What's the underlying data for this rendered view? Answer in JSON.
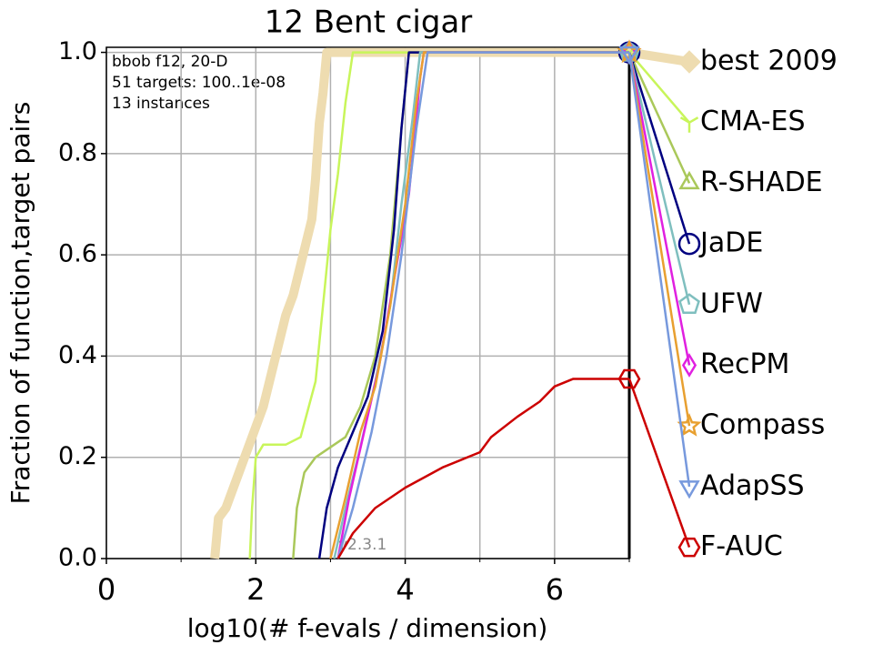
{
  "chart_data": {
    "type": "ecdf",
    "title": "12 Bent cigar",
    "xlabel": "log10(# f-evals / dimension)",
    "ylabel": "Fraction of function,target pairs",
    "annotations": [
      "bbob f12, 20-D",
      "51 targets: 100..1e-08",
      "13 instances"
    ],
    "watermark": "v2.3.1",
    "xlim": [
      0,
      7
    ],
    "ylim": [
      0,
      1.01
    ],
    "xticks": [
      0,
      2,
      4,
      6
    ],
    "xminor": [
      1,
      3,
      5,
      7
    ],
    "yticks": [
      {
        "value": 0,
        "label": "0.0"
      },
      {
        "value": 0.2,
        "label": "0.2"
      },
      {
        "value": 0.4,
        "label": "0.4"
      },
      {
        "value": 0.6,
        "label": "0.6"
      },
      {
        "value": 0.8,
        "label": "0.8"
      },
      {
        "value": 1.0,
        "label": "1.0"
      }
    ],
    "grid": true,
    "series": [
      {
        "name": "best 2009",
        "color": "#eedcb0",
        "marker": "diamond",
        "x": [
          1.45,
          1.5,
          1.6,
          1.7,
          1.8,
          1.9,
          2.0,
          2.1,
          2.2,
          2.3,
          2.4,
          2.5,
          2.6,
          2.7,
          2.75,
          2.8,
          2.85,
          2.9,
          2.95,
          7
        ],
        "values": [
          0,
          0.08,
          0.1,
          0.14,
          0.18,
          0.22,
          0.26,
          0.3,
          0.36,
          0.42,
          0.48,
          0.52,
          0.58,
          0.64,
          0.67,
          0.75,
          0.86,
          0.92,
          1.0,
          1.0
        ]
      },
      {
        "name": "CMA-ES",
        "color": "#c8f55a",
        "marker": "tri",
        "x": [
          1.92,
          1.95,
          2.0,
          2.1,
          2.4,
          2.6,
          2.8,
          2.9,
          3.0,
          3.1,
          3.2,
          3.3,
          7
        ],
        "values": [
          0,
          0.1,
          0.2,
          0.225,
          0.225,
          0.24,
          0.35,
          0.5,
          0.65,
          0.76,
          0.9,
          1.0,
          1.0
        ]
      },
      {
        "name": "R-SHADE",
        "color": "#aac85a",
        "marker": "triangle-up",
        "x": [
          2.5,
          2.55,
          2.65,
          2.8,
          3.0,
          3.2,
          3.4,
          3.6,
          3.8,
          3.95,
          4.05,
          7
        ],
        "values": [
          0,
          0.1,
          0.17,
          0.2,
          0.22,
          0.24,
          0.3,
          0.4,
          0.6,
          0.85,
          1.0,
          1.0
        ]
      },
      {
        "name": "JaDE",
        "color": "#000080",
        "marker": "circle",
        "x": [
          2.85,
          2.95,
          3.1,
          3.3,
          3.5,
          3.7,
          3.85,
          3.95,
          4.05,
          7
        ],
        "values": [
          0,
          0.1,
          0.18,
          0.25,
          0.32,
          0.45,
          0.65,
          0.85,
          1.0,
          1.0
        ]
      },
      {
        "name": "UFW",
        "color": "#7fbfbf",
        "marker": "pentagon",
        "x": [
          3.05,
          3.2,
          3.4,
          3.6,
          3.8,
          3.95,
          4.1,
          4.2,
          7
        ],
        "values": [
          0,
          0.1,
          0.22,
          0.35,
          0.5,
          0.7,
          0.87,
          1.0,
          1.0
        ]
      },
      {
        "name": "RecPM",
        "color": "#e020e0",
        "marker": "thin-diamond",
        "x": [
          3.1,
          3.25,
          3.45,
          3.65,
          3.85,
          4.05,
          4.2,
          4.25,
          7
        ],
        "values": [
          0,
          0.12,
          0.25,
          0.38,
          0.55,
          0.72,
          0.95,
          1.0,
          1.0
        ]
      },
      {
        "name": "Compass",
        "color": "#e8a030",
        "marker": "star",
        "x": [
          3.0,
          3.2,
          3.4,
          3.6,
          3.8,
          4.0,
          4.15,
          4.25,
          7
        ],
        "values": [
          0,
          0.12,
          0.25,
          0.34,
          0.5,
          0.7,
          0.9,
          1.0,
          1.0
        ]
      },
      {
        "name": "AdapSS",
        "color": "#7799dd",
        "marker": "triangle-down",
        "x": [
          3.1,
          3.3,
          3.55,
          3.75,
          3.95,
          4.15,
          4.3,
          7
        ],
        "values": [
          0,
          0.1,
          0.25,
          0.4,
          0.6,
          0.85,
          1.0,
          1.0
        ]
      },
      {
        "name": "F-AUC",
        "color": "#cc0000",
        "marker": "hexagon",
        "x": [
          3.1,
          3.3,
          3.6,
          4.0,
          4.5,
          5.0,
          5.15,
          5.5,
          5.8,
          6.0,
          6.25,
          7
        ],
        "values": [
          0,
          0.05,
          0.1,
          0.14,
          0.18,
          0.21,
          0.24,
          0.28,
          0.31,
          0.34,
          0.355,
          0.355
        ]
      }
    ]
  }
}
